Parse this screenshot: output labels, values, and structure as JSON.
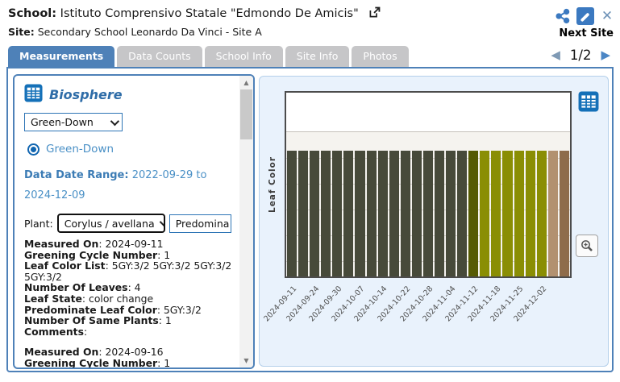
{
  "header": {
    "school_label": "School:",
    "school_name": "Istituto Comprensivo Statale \"Edmondo De Amicis\"",
    "site_label": "Site:",
    "site_name": "Secondary School Leonardo Da Vinci - Site A",
    "next_site_label": "Next Site"
  },
  "tabs": [
    {
      "label": "Measurements",
      "active": true
    },
    {
      "label": "Data Counts",
      "active": false
    },
    {
      "label": "School Info",
      "active": false
    },
    {
      "label": "Site Info",
      "active": false
    },
    {
      "label": "Photos",
      "active": false
    }
  ],
  "pagination": {
    "prev": "◀",
    "page": "1/2",
    "next": "▶"
  },
  "panel": {
    "section_title": "Biosphere",
    "protocol_select_value": "Green-Down",
    "radio_label": "Green-Down",
    "date_range_label": "Data Date Range:",
    "date_range_value": "2022-09-29 to 2024-12-09",
    "plant_label": "Plant:",
    "plant_select_value": "Corylus / avellana",
    "secondary_select_value": "Predomina",
    "records": [
      {
        "fields": [
          {
            "label": "Measured On",
            "value": "2024-09-11"
          },
          {
            "label": "Greening Cycle Number",
            "value": "1"
          },
          {
            "label": "Leaf Color List",
            "value": "5GY:3/2 5GY:3/2 5GY:3/2 5GY:3/2"
          },
          {
            "label": "Number Of Leaves",
            "value": "4"
          },
          {
            "label": "Leaf State",
            "value": "color change"
          },
          {
            "label": "Predominate Leaf Color",
            "value": "5GY:3/2"
          },
          {
            "label": "Number Of Same Plants",
            "value": "1"
          },
          {
            "label": "Comments",
            "value": ""
          }
        ]
      },
      {
        "fields": [
          {
            "label": "Measured On",
            "value": "2024-09-16"
          },
          {
            "label": "Greening Cycle Number",
            "value": "1"
          }
        ]
      }
    ]
  },
  "chart_data": {
    "type": "bar",
    "title": "",
    "xlabel": "",
    "ylabel": "Leaf Color",
    "note": "uniform-height categorical bars; bar color encodes predominate leaf color per observation date",
    "n_bars": 25,
    "bar_height_frac": 0.68,
    "tick_every_n_bars": 2,
    "tick_labels": [
      "2024-09-11",
      "2024-09-24",
      "2024-09-30",
      "2024-10-07",
      "2024-10-14",
      "2024-10-22",
      "2024-10-28",
      "2024-11-04",
      "2024-11-12",
      "2024-11-18",
      "2024-11-25",
      "2024-12-02"
    ],
    "bar_colors": [
      "#474a3a",
      "#474a3a",
      "#474a3a",
      "#474a3a",
      "#474a3a",
      "#474a3a",
      "#474a3a",
      "#474a3a",
      "#474a3a",
      "#474a3a",
      "#474a3a",
      "#474a3a",
      "#474a3a",
      "#474a3a",
      "#474a3a",
      "#474a3a",
      "#565b04",
      "#8a8e04",
      "#8a8e04",
      "#8a8e04",
      "#8a8e04",
      "#8a8e04",
      "#8a8e04",
      "#b29170",
      "#8e6c4b"
    ],
    "color_meaning": {
      "#474a3a": "dark grayish green (5GY 3/2)",
      "#565b04": "dark olive (transition)",
      "#8a8e04": "olive yellow-green",
      "#b29170": "light tan",
      "#8e6c4b": "brown"
    },
    "grid": true,
    "legend": "none"
  },
  "colors": {
    "accent_blue": "#4e81b8",
    "link_blue": "#2f6da8",
    "value_blue": "#4a90c6",
    "inactive_tab": "#c6c6c8",
    "chart_panel_bg": "#e9f2fc",
    "plot_bg": "#f5f3ef",
    "icon_blue": "#1470b8"
  }
}
